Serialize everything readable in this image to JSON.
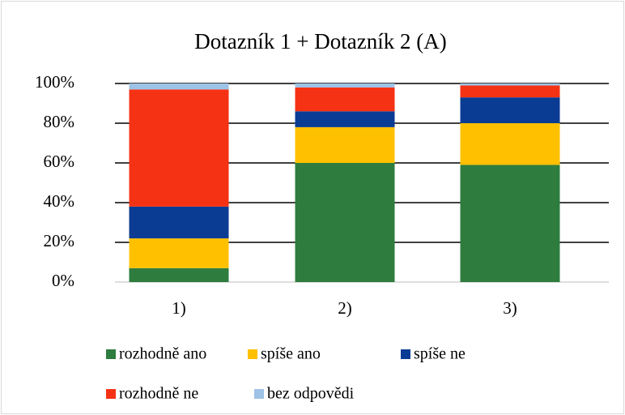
{
  "chart_data": {
    "type": "stacked_bar",
    "title": "Dotazník 1 + Dotazník 2 (A)",
    "categories": [
      "1)",
      "2)",
      "3)"
    ],
    "series": [
      {
        "name": "rozhodně ano",
        "color": "#2e7d3f",
        "values": [
          7,
          60,
          59
        ]
      },
      {
        "name": "spíše ano",
        "color": "#ffc000",
        "values": [
          15,
          18,
          21
        ]
      },
      {
        "name": "spíše ne",
        "color": "#0b3c93",
        "values": [
          16,
          8,
          13
        ]
      },
      {
        "name": "rozhodně ne",
        "color": "#f53214",
        "values": [
          59,
          12,
          6
        ]
      },
      {
        "name": "bez odpovědi",
        "color": "#9dc3e6",
        "values": [
          3,
          2,
          1
        ]
      }
    ],
    "ylim": [
      0,
      100
    ],
    "yticks": [
      {
        "value": 0,
        "label": "0%"
      },
      {
        "value": 20,
        "label": "20%"
      },
      {
        "value": 40,
        "label": "40%"
      },
      {
        "value": 60,
        "label": "60%"
      },
      {
        "value": 80,
        "label": "80%"
      },
      {
        "value": 100,
        "label": "100%"
      }
    ],
    "grid": true
  }
}
